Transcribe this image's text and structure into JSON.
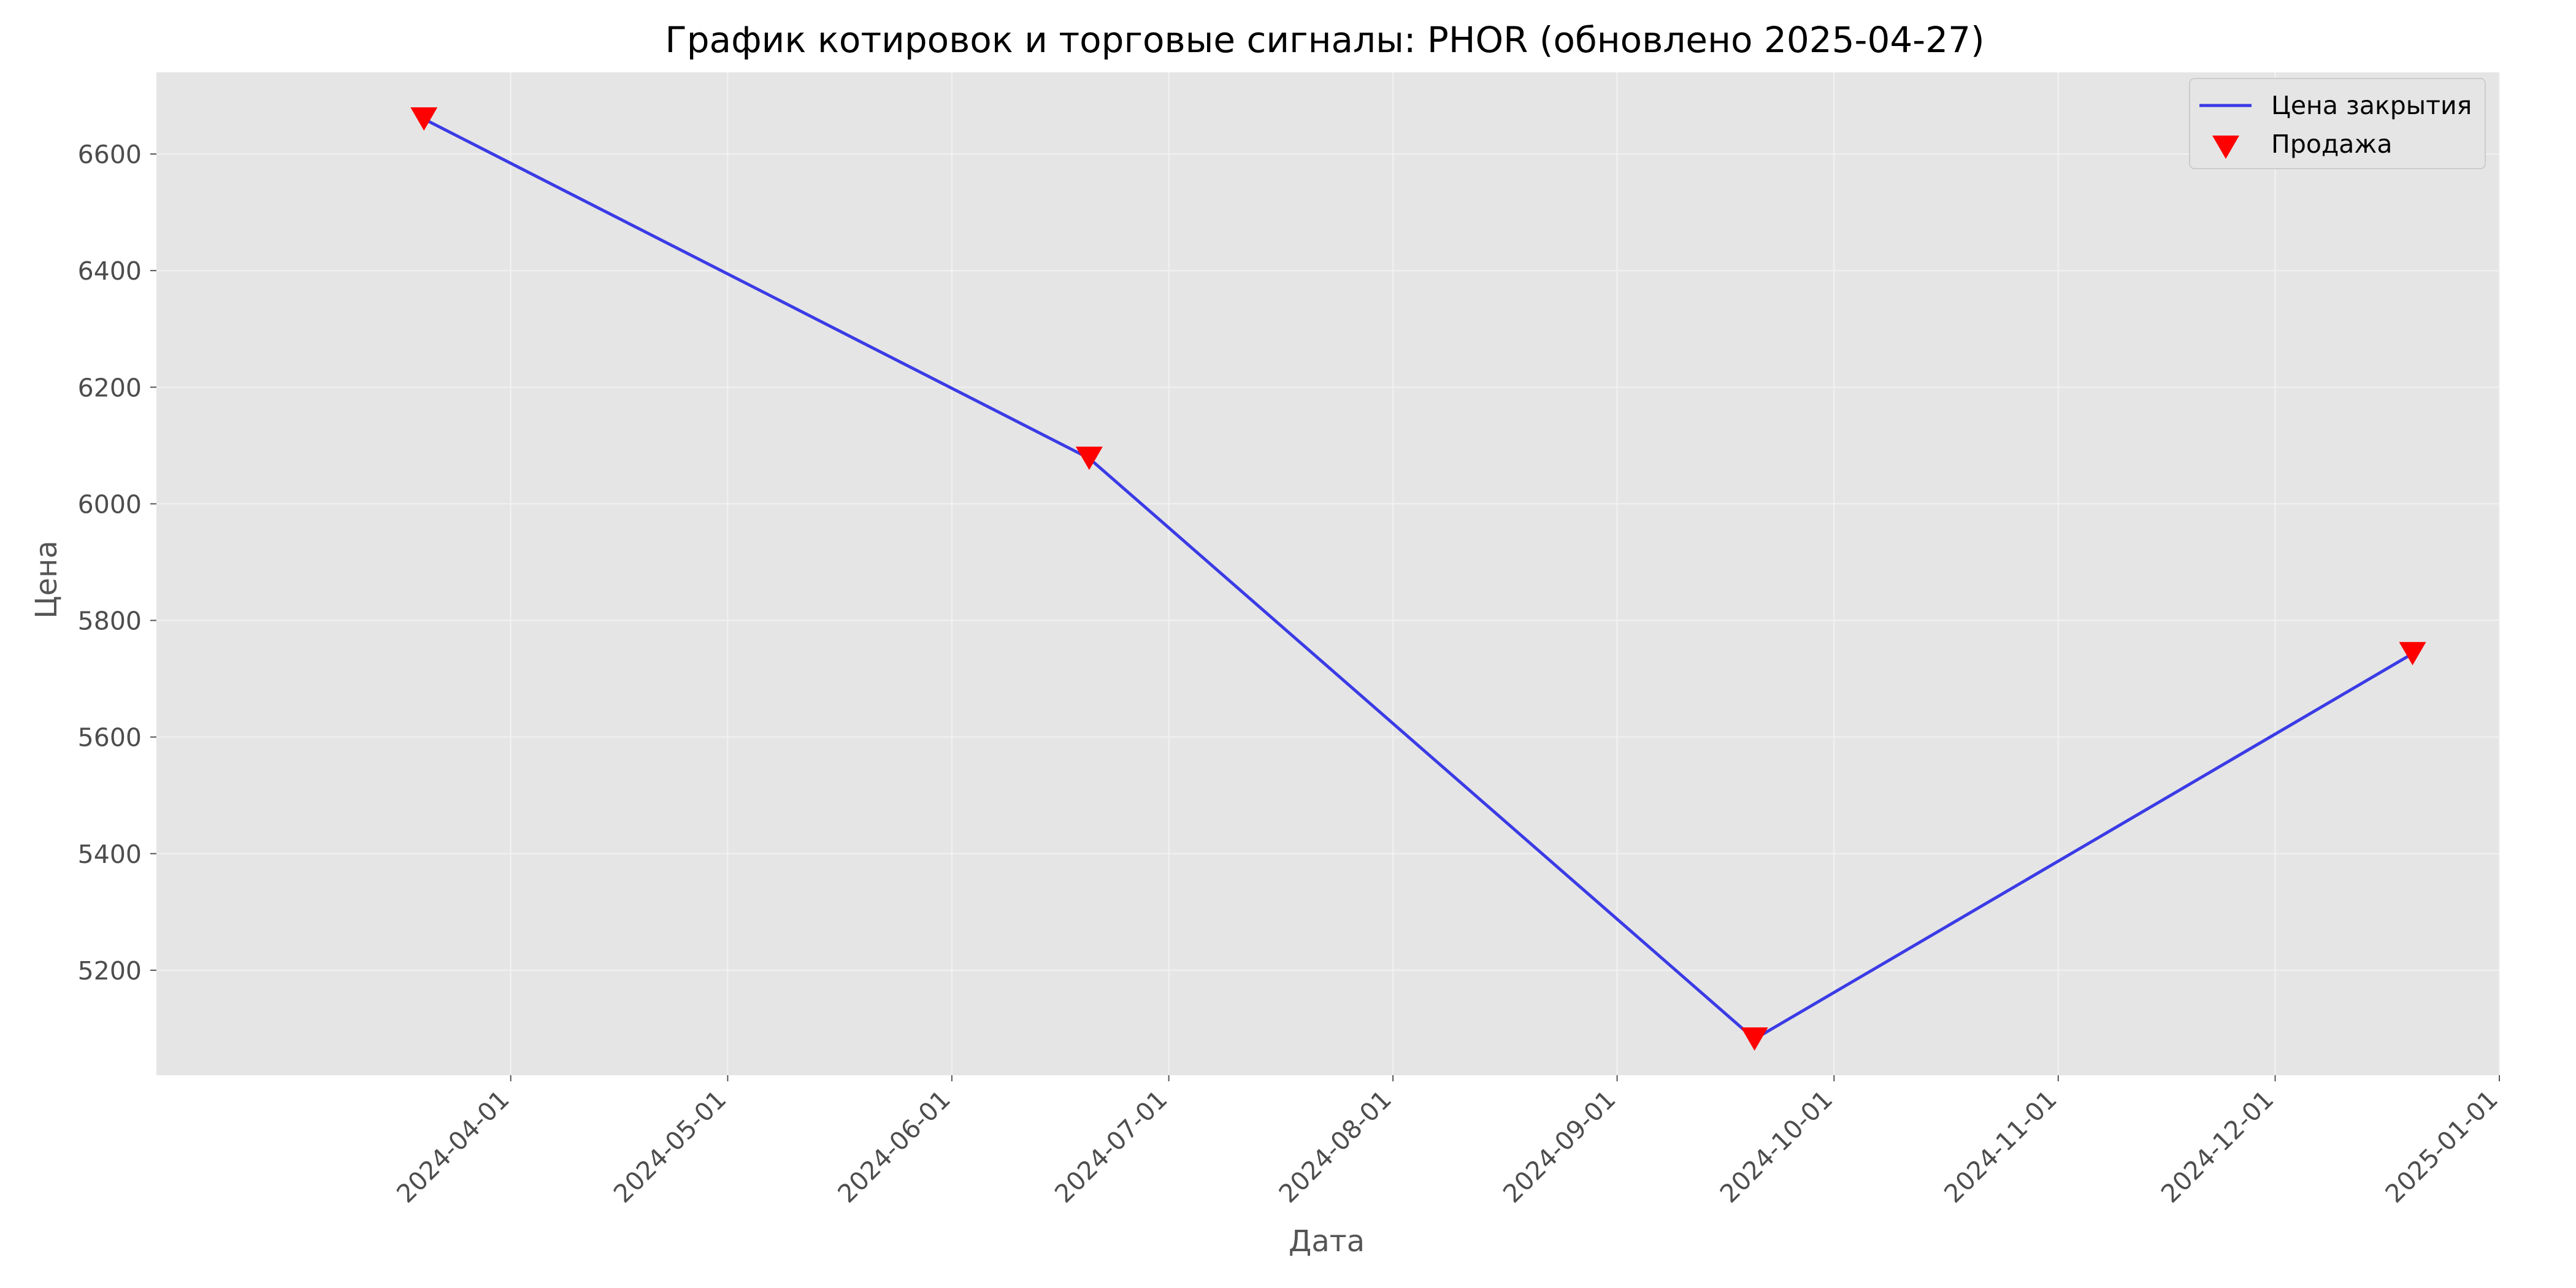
{
  "chart_data": {
    "type": "line",
    "title": "График котировок и торговые сигналы: PHOR (обновлено 2025-04-27)",
    "xlabel": "Дата",
    "ylabel": "Цена",
    "x_axis": "date",
    "xlim": [
      "2024-02-12",
      "2025-01-01"
    ],
    "ylim": [
      5020,
      6740
    ],
    "x_ticks": [
      "2024-04-01",
      "2024-05-01",
      "2024-06-01",
      "2024-07-01",
      "2024-08-01",
      "2024-09-01",
      "2024-10-01",
      "2024-11-01",
      "2024-12-01",
      "2025-01-01"
    ],
    "y_ticks": [
      5200,
      5400,
      5600,
      5800,
      6000,
      6200,
      6400,
      6600
    ],
    "grid": true,
    "legend_position": "top-right",
    "series": [
      {
        "name": "Цена закрытия",
        "kind": "line",
        "color": "#3b3be6",
        "x": [
          "2024-03-20",
          "2024-06-20",
          "2024-09-20",
          "2024-12-20"
        ],
        "y": [
          6660,
          6078,
          5082,
          5743
        ]
      },
      {
        "name": "Продажа",
        "kind": "marker",
        "marker": "triangle-down",
        "color": "#ff0000",
        "x": [
          "2024-03-20",
          "2024-06-20",
          "2024-09-20",
          "2024-12-20"
        ],
        "y": [
          6660,
          6078,
          5082,
          5743
        ]
      }
    ]
  },
  "colors": {
    "plot_background": "#e5e5e5",
    "grid": "#f2f2f2",
    "line": "#3b3be6",
    "marker": "#ff0000"
  }
}
